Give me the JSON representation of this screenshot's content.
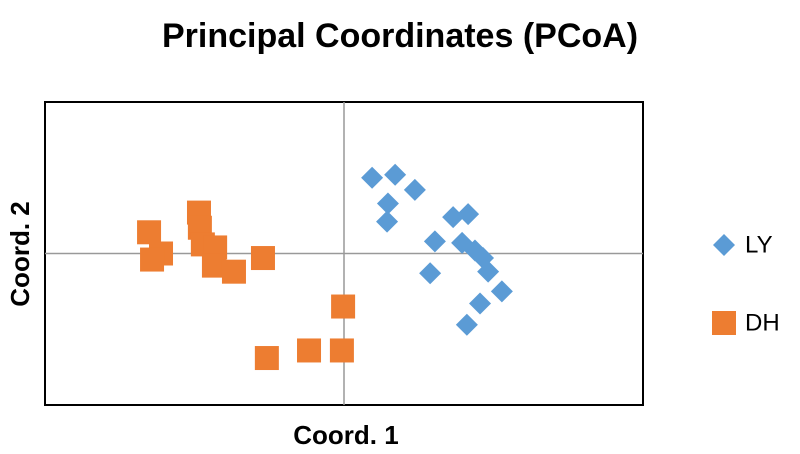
{
  "chart_data": {
    "type": "scatter",
    "title": "Principal Coordinates (PCoA)",
    "x_label": "Coord. 1",
    "y_label": "Coord. 2",
    "xlim": [
      -1,
      1
    ],
    "ylim": [
      -1,
      1
    ],
    "origin_lines": true,
    "legend": "right",
    "series": [
      {
        "name": "LY",
        "color": "#5b9bd5",
        "marker": "diamond",
        "x": [
          0.094,
          0.171,
          0.237,
          0.147,
          0.144,
          0.304,
          0.365,
          0.415,
          0.395,
          0.438,
          0.465,
          0.482,
          0.288,
          0.528,
          0.455,
          0.411
        ],
        "values": [
          0.5,
          0.52,
          0.42,
          0.33,
          0.21,
          0.08,
          0.24,
          0.26,
          0.07,
          0.02,
          -0.03,
          -0.12,
          -0.13,
          -0.25,
          -0.33,
          -0.47
        ]
      },
      {
        "name": "DH",
        "color": "#ed7d31",
        "marker": "square",
        "x": [
          -0.652,
          -0.612,
          -0.642,
          -0.485,
          -0.482,
          -0.472,
          -0.431,
          -0.435,
          -0.368,
          -0.271,
          -0.003,
          -0.007,
          -0.117,
          -0.258
        ],
        "values": [
          0.14,
          0.0,
          -0.04,
          0.27,
          0.17,
          0.06,
          0.04,
          -0.08,
          -0.12,
          -0.03,
          -0.35,
          -0.64,
          -0.64,
          -0.69
        ]
      }
    ]
  }
}
